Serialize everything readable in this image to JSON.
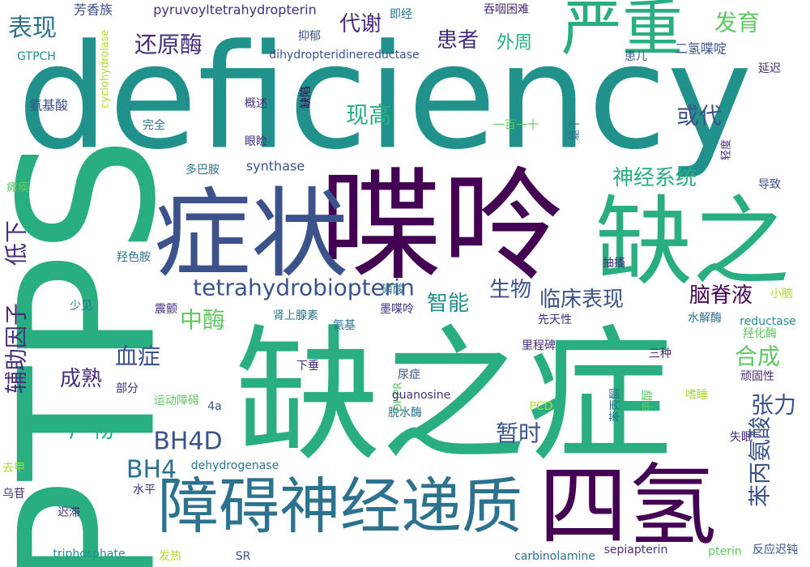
{
  "words": [
    {
      "text": "deficiency",
      "color": "#21918c"
    },
    {
      "text": "PTPS",
      "color": "#28ae80"
    },
    {
      "text": "缺之症",
      "color": "#28ae80"
    },
    {
      "text": "喋呤",
      "color": "#440154"
    },
    {
      "text": "症状",
      "color": "#3b528b"
    },
    {
      "text": "缺之",
      "color": "#28ae80"
    },
    {
      "text": "四氢",
      "color": "#440154"
    },
    {
      "text": "障碍神经递质",
      "color": "#2c728e"
    },
    {
      "text": "严重",
      "color": "#28ae80"
    },
    {
      "text": "tetrahydrobiopterin",
      "color": "#3b528b"
    },
    {
      "text": "BH4D",
      "color": "#3b528b"
    },
    {
      "text": "BH4",
      "color": "#2c728e"
    },
    {
      "text": "表现",
      "color": "#2c728e"
    },
    {
      "text": "芳香族",
      "color": "#3b528b"
    },
    {
      "text": "pyruvoyltetrahydropterin",
      "color": "#472d7b"
    },
    {
      "text": "即经",
      "color": "#2c728e"
    },
    {
      "text": "吞咽困难",
      "color": "#472d7b"
    },
    {
      "text": "发育",
      "color": "#5ec962"
    },
    {
      "text": "代谢",
      "color": "#472d7b"
    },
    {
      "text": "还原酶",
      "color": "#472d7b"
    },
    {
      "text": "患者",
      "color": "#472d7b"
    },
    {
      "text": "外周",
      "color": "#28ae80"
    },
    {
      "text": "抑郁",
      "color": "#3b528b"
    },
    {
      "text": "GTPCH",
      "color": "#21918c"
    },
    {
      "text": "dihydropteridinereductase",
      "color": "#3b528b"
    },
    {
      "text": "患儿",
      "color": "#3b528b"
    },
    {
      "text": "二氢喋啶",
      "color": "#3b528b"
    },
    {
      "text": "cyclohydrolase",
      "color": "#addc30"
    },
    {
      "text": "延迟",
      "color": "#472d7b"
    },
    {
      "text": "缺陷",
      "color": "#440154"
    },
    {
      "text": "氨基酸",
      "color": "#3b528b"
    },
    {
      "text": "概述",
      "color": "#472d7b"
    },
    {
      "text": "现高",
      "color": "#28ae80"
    },
    {
      "text": "或代",
      "color": "#3b528b"
    },
    {
      "text": "完全",
      "color": "#2c728e"
    },
    {
      "text": "一百一十",
      "color": "#5ec962"
    },
    {
      "text": "躯干",
      "color": "#2c728e"
    },
    {
      "text": "眼睑",
      "color": "#472d7b"
    },
    {
      "text": "轻度",
      "color": "#472d7b"
    },
    {
      "text": "多巴胺",
      "color": "#2c728e"
    },
    {
      "text": "synthase",
      "color": "#3b528b"
    },
    {
      "text": "神经系统",
      "color": "#28ae80"
    },
    {
      "text": "瘫痪",
      "color": "#5ec962"
    },
    {
      "text": "导致",
      "color": "#3b528b"
    },
    {
      "text": "低下",
      "color": "#472d7b"
    },
    {
      "text": "羟色胺",
      "color": "#2c728e"
    },
    {
      "text": "抽搐",
      "color": "#472d7b"
    },
    {
      "text": "生物",
      "color": "#3b528b"
    },
    {
      "text": "临床表现",
      "color": "#3b528b"
    },
    {
      "text": "脑脊液",
      "color": "#440154"
    },
    {
      "text": "磷酸",
      "color": "#2c728e"
    },
    {
      "text": "智能",
      "color": "#21918c"
    },
    {
      "text": "少见",
      "color": "#2c728e"
    },
    {
      "text": "小脑",
      "color": "#addc30"
    },
    {
      "text": "震颤",
      "color": "#472d7b"
    },
    {
      "text": "中酶",
      "color": "#5ec962"
    },
    {
      "text": "肾上腺素",
      "color": "#2c728e"
    },
    {
      "text": "墨喋呤",
      "color": "#472d7b"
    },
    {
      "text": "先天性",
      "color": "#472d7b"
    },
    {
      "text": "水解酶",
      "color": "#2c728e"
    },
    {
      "text": "reductase",
      "color": "#21918c"
    },
    {
      "text": "羟化酶",
      "color": "#5ec962"
    },
    {
      "text": "氨基",
      "color": "#2c728e"
    },
    {
      "text": "辅助因子",
      "color": "#472d7b"
    },
    {
      "text": "血症",
      "color": "#3b528b"
    },
    {
      "text": "合成",
      "color": "#5ec962"
    },
    {
      "text": "里程碑",
      "color": "#472d7b"
    },
    {
      "text": "三种",
      "color": "#472d7b"
    },
    {
      "text": "下垂",
      "color": "#472d7b"
    },
    {
      "text": "尿症",
      "color": "#3b528b"
    },
    {
      "text": "成熟",
      "color": "#472d7b"
    },
    {
      "text": "嗜睡",
      "color": "#addc30"
    },
    {
      "text": "顽固性",
      "color": "#472d7b"
    },
    {
      "text": "运动障碍",
      "color": "#5ec962"
    },
    {
      "text": "部分",
      "color": "#472d7b"
    },
    {
      "text": "张力",
      "color": "#3b528b"
    },
    {
      "text": "DHPR",
      "color": "#5ec962"
    },
    {
      "text": "guanosine",
      "color": "#472d7b"
    },
    {
      "text": "苯丙酮",
      "color": "#2c728e"
    },
    {
      "text": "甲醇",
      "color": "#5ec962"
    },
    {
      "text": "4a",
      "color": "#3b528b"
    },
    {
      "text": "PCD",
      "color": "#addc30"
    },
    {
      "text": "脱水酶",
      "color": "#2c728e"
    },
    {
      "text": "产物",
      "color": "#28ae80"
    },
    {
      "text": "暂时",
      "color": "#3b528b"
    },
    {
      "text": "失眠",
      "color": "#472d7b"
    },
    {
      "text": "去甲",
      "color": "#addc30"
    },
    {
      "text": "dehydrogenase",
      "color": "#2c728e"
    },
    {
      "text": "苯丙氨酸",
      "color": "#3b528b"
    },
    {
      "text": "乌苷",
      "color": "#472d7b"
    },
    {
      "text": "水平",
      "color": "#472d7b"
    },
    {
      "text": "迟滞",
      "color": "#472d7b"
    },
    {
      "text": "triphosphate",
      "color": "#21918c"
    },
    {
      "text": "发热",
      "color": "#addc30"
    },
    {
      "text": "SR",
      "color": "#3b528b"
    },
    {
      "text": "carbinolamine",
      "color": "#2c728e"
    },
    {
      "text": "sepiapterin",
      "color": "#472d7b"
    },
    {
      "text": "pterin",
      "color": "#5ec962"
    },
    {
      "text": "反应迟钝",
      "color": "#3b528b"
    }
  ]
}
